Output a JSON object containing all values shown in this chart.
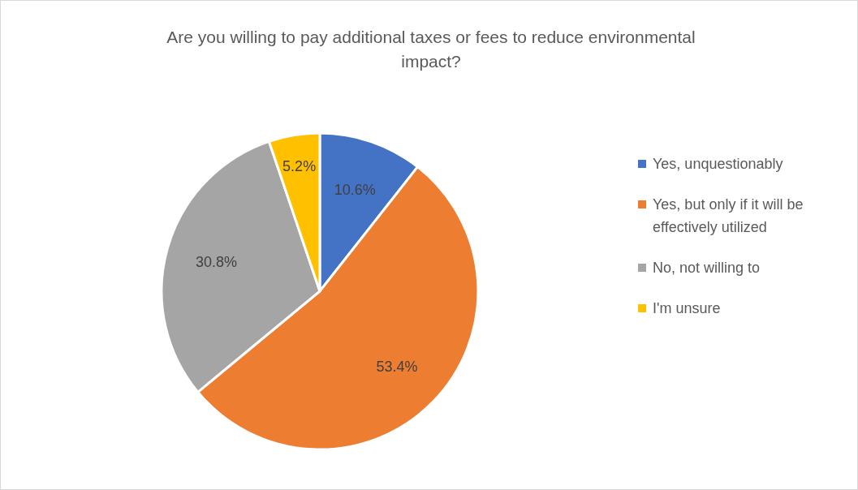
{
  "chart_data": {
    "type": "pie",
    "title": "Are you willing to pay additional taxes or fees to reduce environmental impact?",
    "categories": [
      "Yes, unquestionably",
      "Yes, but only if it will be effectively utilized",
      "No, not willing to",
      "I'm unsure"
    ],
    "values": [
      10.6,
      53.4,
      30.8,
      5.2
    ],
    "colors": [
      "#4472c4",
      "#ed7d31",
      "#a5a5a5",
      "#ffc000"
    ],
    "value_labels": [
      "10.6%",
      "53.4%",
      "30.8%",
      "5.2%"
    ],
    "legend": "right"
  }
}
